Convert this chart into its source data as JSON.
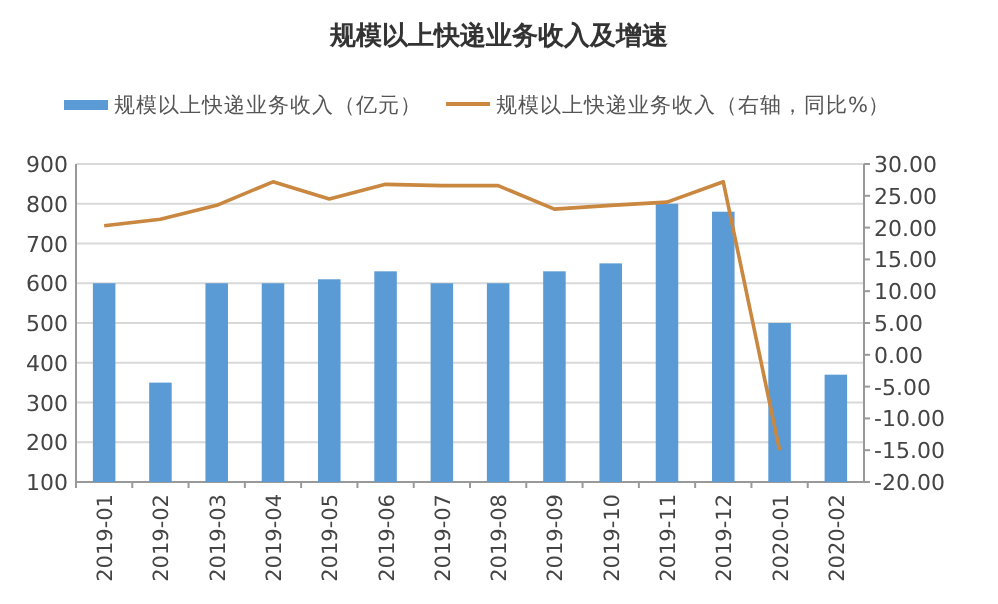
{
  "chart_data": {
    "type": "bar",
    "title": "规模以上快递业务收入及增速",
    "categories": [
      "2019-01",
      "2019-02",
      "2019-03",
      "2019-04",
      "2019-05",
      "2019-06",
      "2019-07",
      "2019-08",
      "2019-09",
      "2019-10",
      "2019-11",
      "2019-12",
      "2020-01",
      "2020-02"
    ],
    "series": [
      {
        "name": "规模以上快递业务收入（亿元）",
        "color": "#5b9bd5",
        "values": [
          600,
          350,
          600,
          600,
          610,
          630,
          600,
          600,
          630,
          650,
          800,
          780,
          500,
          370
        ]
      },
      {
        "name": "规模以上快递业务收入（右轴，同比%）",
        "type": "line",
        "axis": "y2",
        "color": "#c9873f",
        "values": [
          20.3,
          21.3,
          23.5,
          27.2,
          24.5,
          26.8,
          26.6,
          26.6,
          22.9,
          23.5,
          24,
          27.2,
          -15,
          null
        ]
      }
    ],
    "ylim": [
      100,
      900
    ],
    "yticks": [
      100,
      200,
      300,
      400,
      500,
      600,
      700,
      800,
      900
    ],
    "y2lim": [
      -20,
      30
    ],
    "y2ticks": [
      {
        "value": 30,
        "label": "30.00"
      },
      {
        "value": 25,
        "label": "25.00"
      },
      {
        "value": 20,
        "label": "20.00"
      },
      {
        "value": 15,
        "label": "15.00"
      },
      {
        "value": 10,
        "label": "10.00"
      },
      {
        "value": 5,
        "label": "5.00"
      },
      {
        "value": 0,
        "label": "0.00"
      },
      {
        "value": -5,
        "label": "-5.00"
      },
      {
        "value": -10,
        "label": "-10.00"
      },
      {
        "value": -15,
        "label": "-15.00"
      },
      {
        "value": -20,
        "label": "-20.00"
      }
    ],
    "grid": "y",
    "legend": "top",
    "marker": "none",
    "line_style": "solid"
  }
}
